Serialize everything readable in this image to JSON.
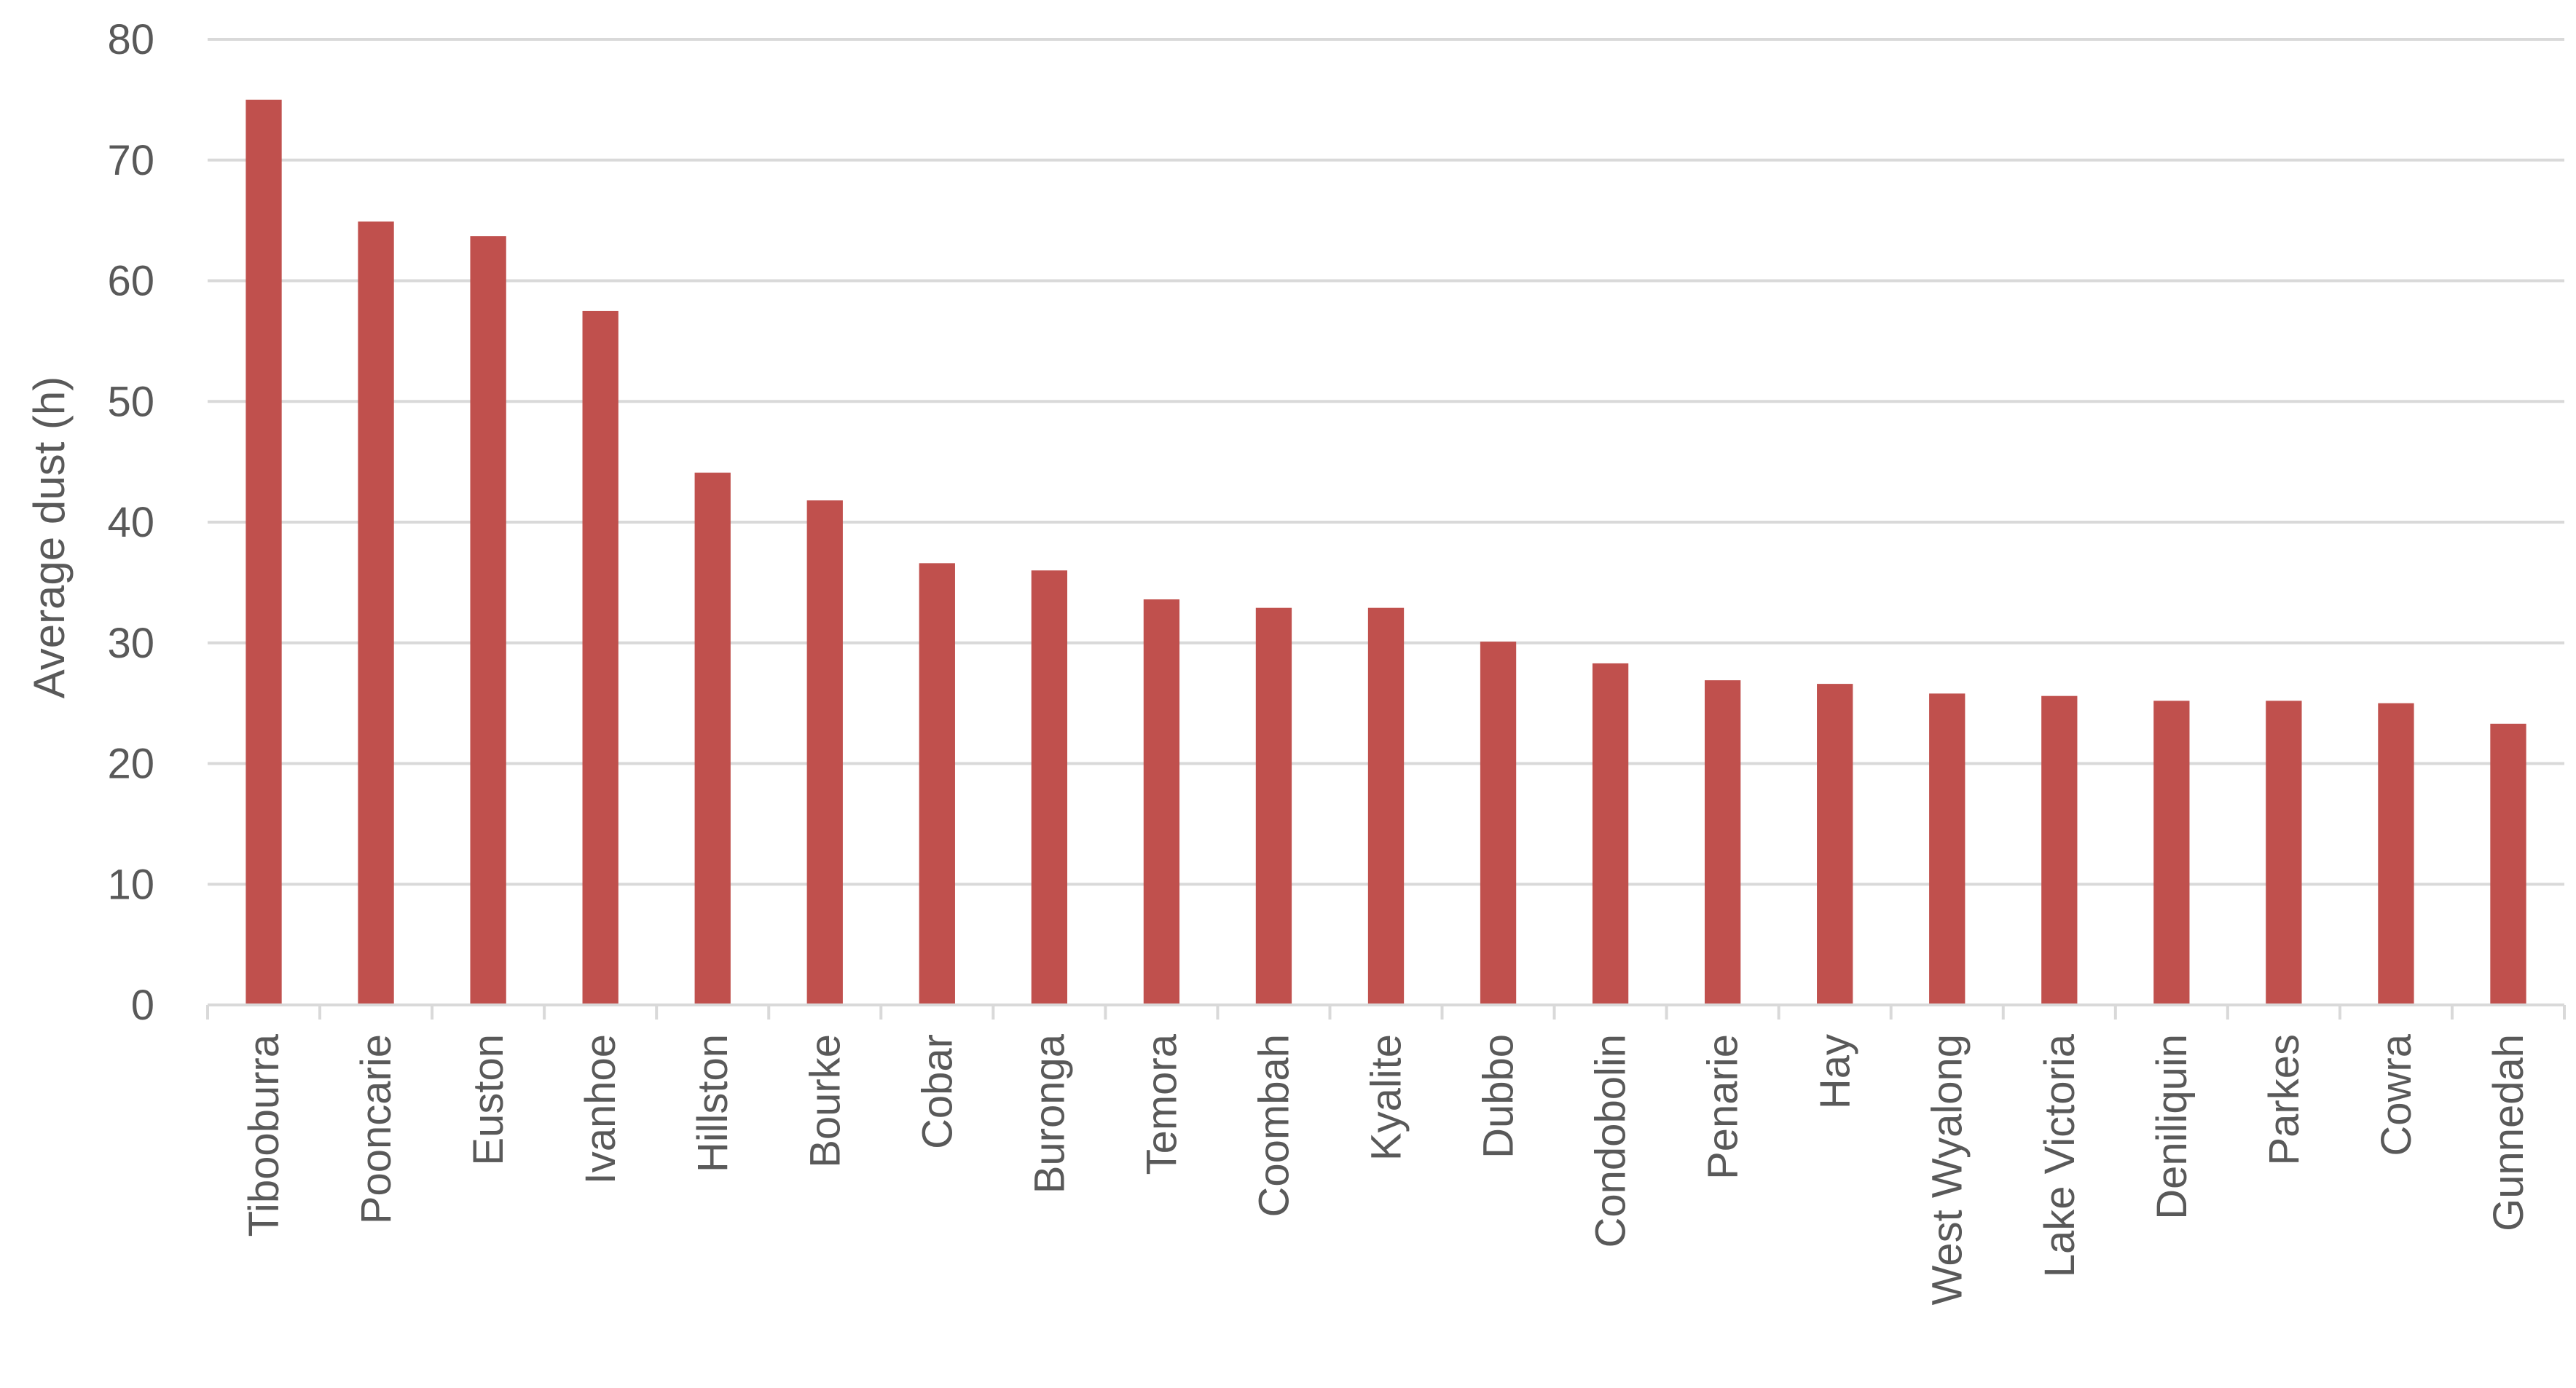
{
  "chart_data": {
    "type": "bar",
    "title": "",
    "xlabel": "",
    "ylabel": "Average dust (h)",
    "ylim": [
      0,
      80
    ],
    "yticks": [
      0,
      10,
      20,
      30,
      40,
      50,
      60,
      70,
      80
    ],
    "grid": true,
    "legend": "none",
    "bar_color": "#c0504d",
    "categories": [
      "Tibooburra",
      "Pooncarie",
      "Euston",
      "Ivanhoe",
      "Hillston",
      "Bourke",
      "Cobar",
      "Buronga",
      "Temora",
      "Coombah",
      "Kyalite",
      "Dubbo",
      "Condobolin",
      "Penarie",
      "Hay",
      "West Wyalong",
      "Lake Victoria",
      "Deniliquin",
      "Parkes",
      "Cowra",
      "Gunnedah"
    ],
    "values": [
      75.0,
      64.9,
      63.7,
      57.5,
      44.1,
      41.8,
      36.6,
      36.0,
      33.6,
      32.9,
      32.9,
      30.1,
      28.3,
      26.9,
      26.6,
      25.8,
      25.6,
      25.2,
      25.2,
      25.0,
      23.3
    ]
  }
}
